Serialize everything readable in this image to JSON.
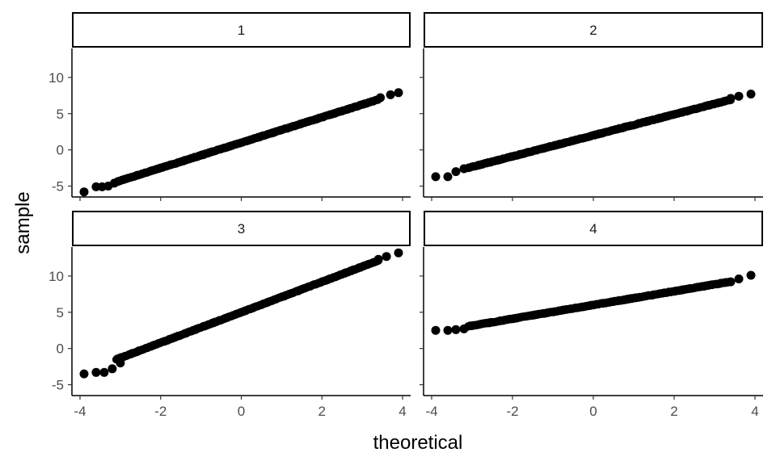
{
  "chart_data": {
    "type": "scatter",
    "subtype": "qq-plot-faceted",
    "title": "",
    "xlabel": "theoretical",
    "ylabel": "sample",
    "xlim": [
      -4.2,
      4.2
    ],
    "ylim": [
      -6.5,
      14
    ],
    "x_ticks": [
      -4,
      -2,
      0,
      2,
      4
    ],
    "x_tick_labels": [
      "-4",
      "-2",
      "0",
      "2",
      "4"
    ],
    "y_ticks": [
      -5,
      0,
      5,
      10
    ],
    "y_tick_labels": [
      "-5",
      "0",
      "5",
      "10"
    ],
    "grid": false,
    "legend": "none",
    "point_color": "#000000",
    "facets": [
      {
        "label": "1",
        "intercept": 1.0,
        "slope": 1.75,
        "points": [
          {
            "x": -3.9,
            "y": -5.8
          },
          {
            "x": -3.6,
            "y": -5.1
          },
          {
            "x": -3.45,
            "y": -5.1
          },
          {
            "x": -3.3,
            "y": -5.0
          },
          {
            "x": -3.15,
            "y": -4.6
          },
          {
            "x": 3.45,
            "y": 7.2
          },
          {
            "x": 3.7,
            "y": 7.6
          },
          {
            "x": 3.9,
            "y": 7.9
          }
        ]
      },
      {
        "label": "2",
        "intercept": 2.0,
        "slope": 1.45,
        "points": [
          {
            "x": -3.9,
            "y": -3.7
          },
          {
            "x": -3.6,
            "y": -3.7
          },
          {
            "x": -3.4,
            "y": -3.0
          },
          {
            "x": -3.2,
            "y": -2.6
          },
          {
            "x": 3.4,
            "y": 7.1
          },
          {
            "x": 3.6,
            "y": 7.4
          },
          {
            "x": 3.9,
            "y": 7.7
          }
        ]
      },
      {
        "label": "3",
        "intercept": 5.0,
        "slope": 2.1,
        "points": [
          {
            "x": -3.9,
            "y": -3.5
          },
          {
            "x": -3.6,
            "y": -3.3
          },
          {
            "x": -3.4,
            "y": -3.3
          },
          {
            "x": -3.2,
            "y": -2.8
          },
          {
            "x": -3.0,
            "y": -2.0
          },
          {
            "x": 3.4,
            "y": 12.3
          },
          {
            "x": 3.6,
            "y": 12.7
          },
          {
            "x": 3.9,
            "y": 13.2
          }
        ]
      },
      {
        "label": "4",
        "intercept": 6.0,
        "slope": 0.95,
        "points": [
          {
            "x": -3.9,
            "y": 2.5
          },
          {
            "x": -3.6,
            "y": 2.5
          },
          {
            "x": -3.4,
            "y": 2.6
          },
          {
            "x": -3.2,
            "y": 2.7
          },
          {
            "x": 3.4,
            "y": 9.2
          },
          {
            "x": 3.6,
            "y": 9.6
          },
          {
            "x": 3.9,
            "y": 10.1
          }
        ]
      }
    ]
  }
}
